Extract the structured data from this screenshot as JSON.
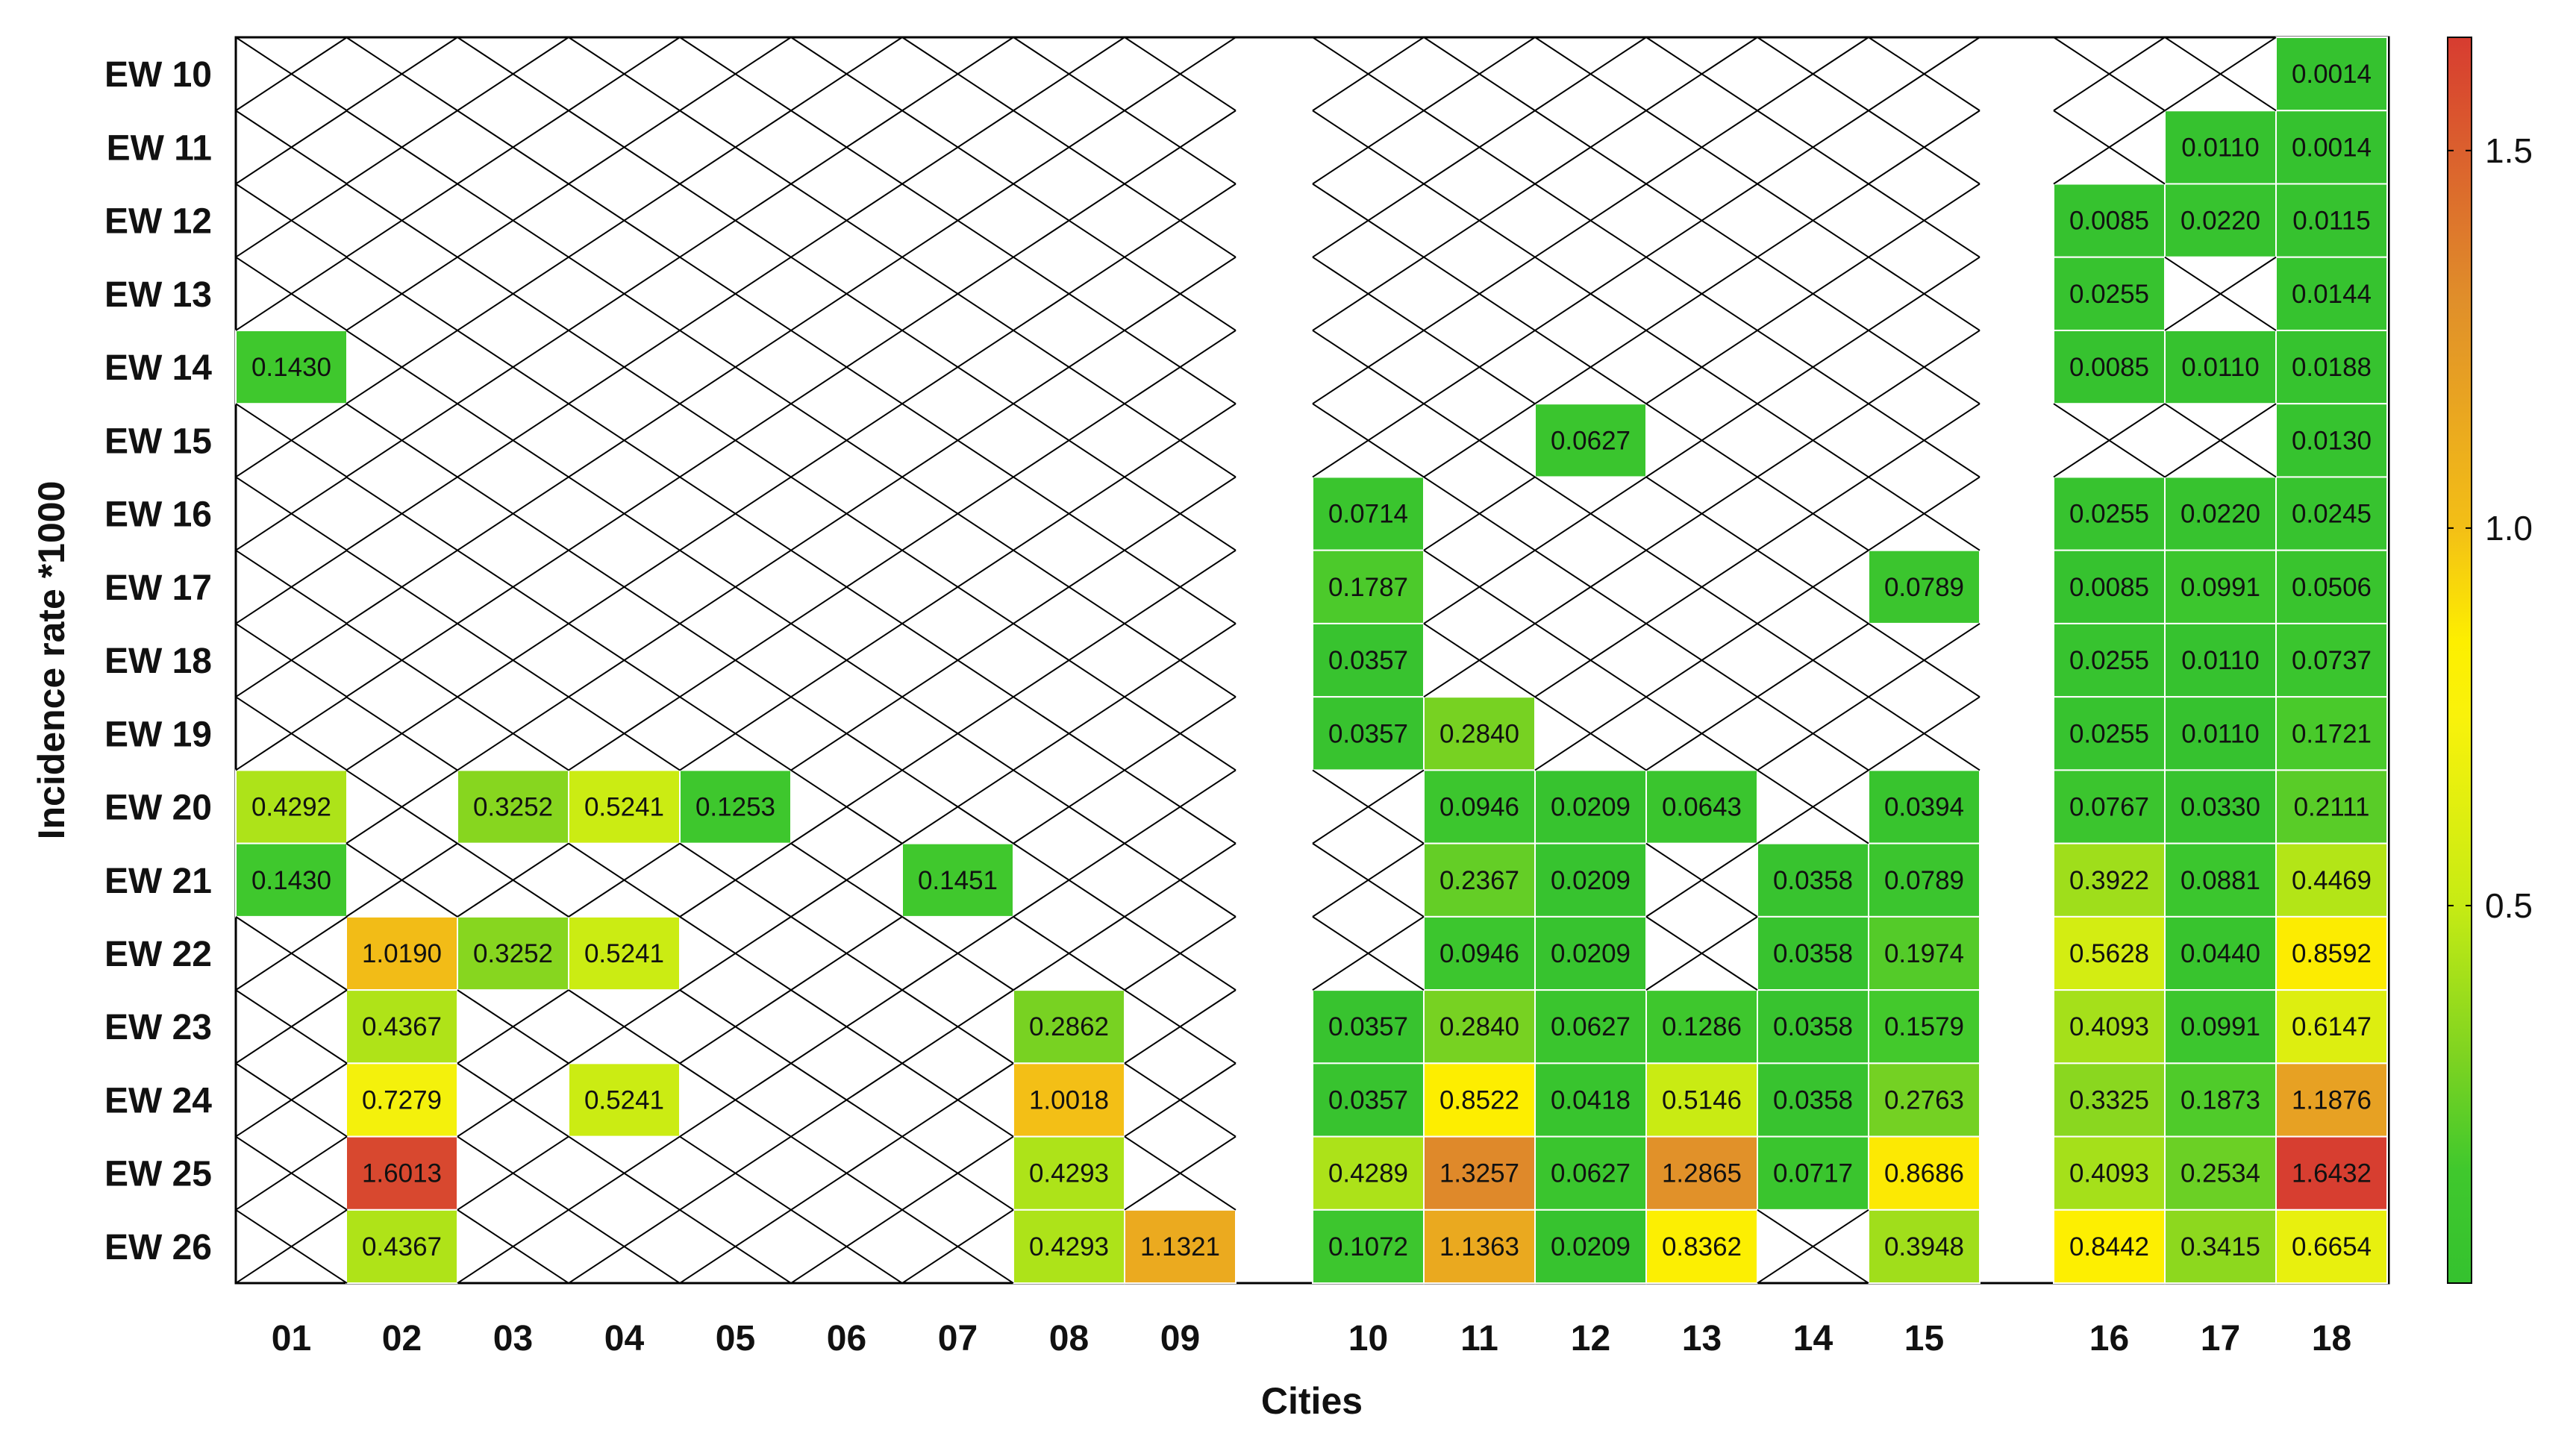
{
  "chart_data": {
    "type": "heatmap",
    "xlabel": "Cities",
    "ylabel": "Incidence rate *1000",
    "x_categories": [
      "01",
      "02",
      "03",
      "04",
      "05",
      "06",
      "07",
      "08",
      "09",
      "10",
      "11",
      "12",
      "13",
      "14",
      "15",
      "16",
      "17",
      "18"
    ],
    "y_categories": [
      "EW 10",
      "EW 11",
      "EW 12",
      "EW 13",
      "EW 14",
      "EW 15",
      "EW 16",
      "EW 17",
      "EW 18",
      "EW 19",
      "EW 20",
      "EW 21",
      "EW 22",
      "EW 23",
      "EW 24",
      "EW 25",
      "EW 26"
    ],
    "missing_marker": "crossed (X) cell = no data",
    "cells": [
      {
        "x": "18",
        "y": "EW 10",
        "label": "0.0014",
        "value": 0.0014
      },
      {
        "x": "17",
        "y": "EW 11",
        "label": "0.0110",
        "value": 0.011
      },
      {
        "x": "18",
        "y": "EW 11",
        "label": "0.0014",
        "value": 0.0014
      },
      {
        "x": "16",
        "y": "EW 12",
        "label": "0.0085",
        "value": 0.0085
      },
      {
        "x": "17",
        "y": "EW 12",
        "label": "0.0220",
        "value": 0.022
      },
      {
        "x": "18",
        "y": "EW 12",
        "label": "0.0115",
        "value": 0.0115
      },
      {
        "x": "16",
        "y": "EW 13",
        "label": "0.0255",
        "value": 0.0255
      },
      {
        "x": "18",
        "y": "EW 13",
        "label": "0.0144",
        "value": 0.0144
      },
      {
        "x": "01",
        "y": "EW 14",
        "label": "0.1430",
        "value": 0.143
      },
      {
        "x": "16",
        "y": "EW 14",
        "label": "0.0085",
        "value": 0.0085
      },
      {
        "x": "17",
        "y": "EW 14",
        "label": "0.0110",
        "value": 0.011
      },
      {
        "x": "18",
        "y": "EW 14",
        "label": "0.0188",
        "value": 0.0188
      },
      {
        "x": "12",
        "y": "EW 15",
        "label": "0.0627",
        "value": 0.0627
      },
      {
        "x": "18",
        "y": "EW 15",
        "label": "0.0130",
        "value": 0.013
      },
      {
        "x": "10",
        "y": "EW 16",
        "label": "0.0714",
        "value": 0.0714
      },
      {
        "x": "16",
        "y": "EW 16",
        "label": "0.0255",
        "value": 0.0255
      },
      {
        "x": "17",
        "y": "EW 16",
        "label": "0.0220",
        "value": 0.022
      },
      {
        "x": "18",
        "y": "EW 16",
        "label": "0.0245",
        "value": 0.0245
      },
      {
        "x": "10",
        "y": "EW 17",
        "label": "0.1787",
        "value": 0.1787
      },
      {
        "x": "15",
        "y": "EW 17",
        "label": "0.0789",
        "value": 0.0789
      },
      {
        "x": "16",
        "y": "EW 17",
        "label": "0.0085",
        "value": 0.0085
      },
      {
        "x": "17",
        "y": "EW 17",
        "label": "0.0991",
        "value": 0.0991
      },
      {
        "x": "18",
        "y": "EW 17",
        "label": "0.0506",
        "value": 0.0506
      },
      {
        "x": "10",
        "y": "EW 18",
        "label": "0.0357",
        "value": 0.0357
      },
      {
        "x": "16",
        "y": "EW 18",
        "label": "0.0255",
        "value": 0.0255
      },
      {
        "x": "17",
        "y": "EW 18",
        "label": "0.0110",
        "value": 0.011
      },
      {
        "x": "18",
        "y": "EW 18",
        "label": "0.0737",
        "value": 0.0737
      },
      {
        "x": "10",
        "y": "EW 19",
        "label": "0.0357",
        "value": 0.0357
      },
      {
        "x": "11",
        "y": "EW 19",
        "label": "0.2840",
        "value": 0.284
      },
      {
        "x": "16",
        "y": "EW 19",
        "label": "0.0255",
        "value": 0.0255
      },
      {
        "x": "17",
        "y": "EW 19",
        "label": "0.0110",
        "value": 0.011
      },
      {
        "x": "18",
        "y": "EW 19",
        "label": "0.1721",
        "value": 0.1721
      },
      {
        "x": "01",
        "y": "EW 20",
        "label": "0.4292",
        "value": 0.4292
      },
      {
        "x": "03",
        "y": "EW 20",
        "label": "0.3252",
        "value": 0.3252
      },
      {
        "x": "04",
        "y": "EW 20",
        "label": "0.5241",
        "value": 0.5241
      },
      {
        "x": "05",
        "y": "EW 20",
        "label": "0.1253",
        "value": 0.1253
      },
      {
        "x": "11",
        "y": "EW 20",
        "label": "0.0946",
        "value": 0.0946
      },
      {
        "x": "12",
        "y": "EW 20",
        "label": "0.0209",
        "value": 0.0209
      },
      {
        "x": "13",
        "y": "EW 20",
        "label": "0.0643",
        "value": 0.0643
      },
      {
        "x": "15",
        "y": "EW 20",
        "label": "0.0394",
        "value": 0.0394
      },
      {
        "x": "16",
        "y": "EW 20",
        "label": "0.0767",
        "value": 0.0767
      },
      {
        "x": "17",
        "y": "EW 20",
        "label": "0.0330",
        "value": 0.033
      },
      {
        "x": "18",
        "y": "EW 20",
        "label": "0.2111",
        "value": 0.2111
      },
      {
        "x": "01",
        "y": "EW 21",
        "label": "0.1430",
        "value": 0.143
      },
      {
        "x": "07",
        "y": "EW 21",
        "label": "0.1451",
        "value": 0.1451
      },
      {
        "x": "11",
        "y": "EW 21",
        "label": "0.2367",
        "value": 0.2367
      },
      {
        "x": "12",
        "y": "EW 21",
        "label": "0.0209",
        "value": 0.0209
      },
      {
        "x": "14",
        "y": "EW 21",
        "label": "0.0358",
        "value": 0.0358
      },
      {
        "x": "15",
        "y": "EW 21",
        "label": "0.0789",
        "value": 0.0789
      },
      {
        "x": "16",
        "y": "EW 21",
        "label": "0.3922",
        "value": 0.3922
      },
      {
        "x": "17",
        "y": "EW 21",
        "label": "0.0881",
        "value": 0.0881
      },
      {
        "x": "18",
        "y": "EW 21",
        "label": "0.4469",
        "value": 0.4469
      },
      {
        "x": "02",
        "y": "EW 22",
        "label": "1.0190",
        "value": 1.019
      },
      {
        "x": "03",
        "y": "EW 22",
        "label": "0.3252",
        "value": 0.3252
      },
      {
        "x": "04",
        "y": "EW 22",
        "label": "0.5241",
        "value": 0.5241
      },
      {
        "x": "11",
        "y": "EW 22",
        "label": "0.0946",
        "value": 0.0946
      },
      {
        "x": "12",
        "y": "EW 22",
        "label": "0.0209",
        "value": 0.0209
      },
      {
        "x": "14",
        "y": "EW 22",
        "label": "0.0358",
        "value": 0.0358
      },
      {
        "x": "15",
        "y": "EW 22",
        "label": "0.1974",
        "value": 0.1974
      },
      {
        "x": "16",
        "y": "EW 22",
        "label": "0.5628",
        "value": 0.5628
      },
      {
        "x": "17",
        "y": "EW 22",
        "label": "0.0440",
        "value": 0.044
      },
      {
        "x": "18",
        "y": "EW 22",
        "label": "0.8592",
        "value": 0.8592
      },
      {
        "x": "02",
        "y": "EW 23",
        "label": "0.4367",
        "value": 0.4367
      },
      {
        "x": "08",
        "y": "EW 23",
        "label": "0.2862",
        "value": 0.2862
      },
      {
        "x": "10",
        "y": "EW 23",
        "label": "0.0357",
        "value": 0.0357
      },
      {
        "x": "11",
        "y": "EW 23",
        "label": "0.2840",
        "value": 0.284
      },
      {
        "x": "12",
        "y": "EW 23",
        "label": "0.0627",
        "value": 0.0627
      },
      {
        "x": "13",
        "y": "EW 23",
        "label": "0.1286",
        "value": 0.1286
      },
      {
        "x": "14",
        "y": "EW 23",
        "label": "0.0358",
        "value": 0.0358
      },
      {
        "x": "15",
        "y": "EW 23",
        "label": "0.1579",
        "value": 0.1579
      },
      {
        "x": "16",
        "y": "EW 23",
        "label": "0.4093",
        "value": 0.4093
      },
      {
        "x": "17",
        "y": "EW 23",
        "label": "0.0991",
        "value": 0.0991
      },
      {
        "x": "18",
        "y": "EW 23",
        "label": "0.6147",
        "value": 0.6147
      },
      {
        "x": "02",
        "y": "EW 24",
        "label": "0.7279",
        "value": 0.7279
      },
      {
        "x": "04",
        "y": "EW 24",
        "label": "0.5241",
        "value": 0.5241
      },
      {
        "x": "08",
        "y": "EW 24",
        "label": "1.0018",
        "value": 1.0018
      },
      {
        "x": "10",
        "y": "EW 24",
        "label": "0.0357",
        "value": 0.0357
      },
      {
        "x": "11",
        "y": "EW 24",
        "label": "0.8522",
        "value": 0.8522
      },
      {
        "x": "12",
        "y": "EW 24",
        "label": "0.0418",
        "value": 0.0418
      },
      {
        "x": "13",
        "y": "EW 24",
        "label": "0.5146",
        "value": 0.5146
      },
      {
        "x": "14",
        "y": "EW 24",
        "label": "0.0358",
        "value": 0.0358
      },
      {
        "x": "15",
        "y": "EW 24",
        "label": "0.2763",
        "value": 0.2763
      },
      {
        "x": "16",
        "y": "EW 24",
        "label": "0.3325",
        "value": 0.3325
      },
      {
        "x": "17",
        "y": "EW 24",
        "label": "0.1873",
        "value": 0.1873
      },
      {
        "x": "18",
        "y": "EW 24",
        "label": "1.1876",
        "value": 1.1876
      },
      {
        "x": "02",
        "y": "EW 25",
        "label": "1.6013",
        "value": 1.6013
      },
      {
        "x": "08",
        "y": "EW 25",
        "label": "0.4293",
        "value": 0.4293
      },
      {
        "x": "10",
        "y": "EW 25",
        "label": "0.4289",
        "value": 0.4289
      },
      {
        "x": "11",
        "y": "EW 25",
        "label": "1.3257",
        "value": 1.3257
      },
      {
        "x": "12",
        "y": "EW 25",
        "label": "0.0627",
        "value": 0.0627
      },
      {
        "x": "13",
        "y": "EW 25",
        "label": "1.2865",
        "value": 1.2865
      },
      {
        "x": "14",
        "y": "EW 25",
        "label": "0.0717",
        "value": 0.0717
      },
      {
        "x": "15",
        "y": "EW 25",
        "label": "0.8686",
        "value": 0.8686
      },
      {
        "x": "16",
        "y": "EW 25",
        "label": "0.4093",
        "value": 0.4093
      },
      {
        "x": "17",
        "y": "EW 25",
        "label": "0.2534",
        "value": 0.2534
      },
      {
        "x": "18",
        "y": "EW 25",
        "label": "1.6432",
        "value": 1.6432
      },
      {
        "x": "02",
        "y": "EW 26",
        "label": "0.4367",
        "value": 0.4367
      },
      {
        "x": "08",
        "y": "EW 26",
        "label": "0.4293",
        "value": 0.4293
      },
      {
        "x": "09",
        "y": "EW 26",
        "label": "1.1321",
        "value": 1.1321
      },
      {
        "x": "10",
        "y": "EW 26",
        "label": "0.1072",
        "value": 0.1072
      },
      {
        "x": "11",
        "y": "EW 26",
        "label": "1.1363",
        "value": 1.1363
      },
      {
        "x": "12",
        "y": "EW 26",
        "label": "0.0209",
        "value": 0.0209
      },
      {
        "x": "13",
        "y": "EW 26",
        "label": "0.8362",
        "value": 0.8362
      },
      {
        "x": "15",
        "y": "EW 26",
        "label": "0.3948",
        "value": 0.3948
      },
      {
        "x": "16",
        "y": "EW 26",
        "label": "0.8442",
        "value": 0.8442
      },
      {
        "x": "17",
        "y": "EW 26",
        "label": "0.3415",
        "value": 0.3415
      },
      {
        "x": "18",
        "y": "EW 26",
        "label": "0.6654",
        "value": 0.6654
      }
    ],
    "colorbar": {
      "ticks": [
        {
          "value": 0.5,
          "label": "0.5"
        },
        {
          "value": 1.0,
          "label": "1.0"
        },
        {
          "value": 1.5,
          "label": "1.5"
        }
      ],
      "range": [
        0.0,
        1.65
      ],
      "stops": [
        {
          "value": 0.0,
          "color": "#35c22f"
        },
        {
          "value": 0.15,
          "color": "#40c82d"
        },
        {
          "value": 0.3,
          "color": "#7ed321"
        },
        {
          "value": 0.5,
          "color": "#c6eb14"
        },
        {
          "value": 0.75,
          "color": "#f9f20b"
        },
        {
          "value": 0.85,
          "color": "#fdef00"
        },
        {
          "value": 1.0,
          "color": "#f3bf16"
        },
        {
          "value": 1.3,
          "color": "#e08f2a"
        },
        {
          "value": 1.65,
          "color": "#d73c30"
        }
      ]
    },
    "grid": false,
    "legend": "colorbar right"
  }
}
